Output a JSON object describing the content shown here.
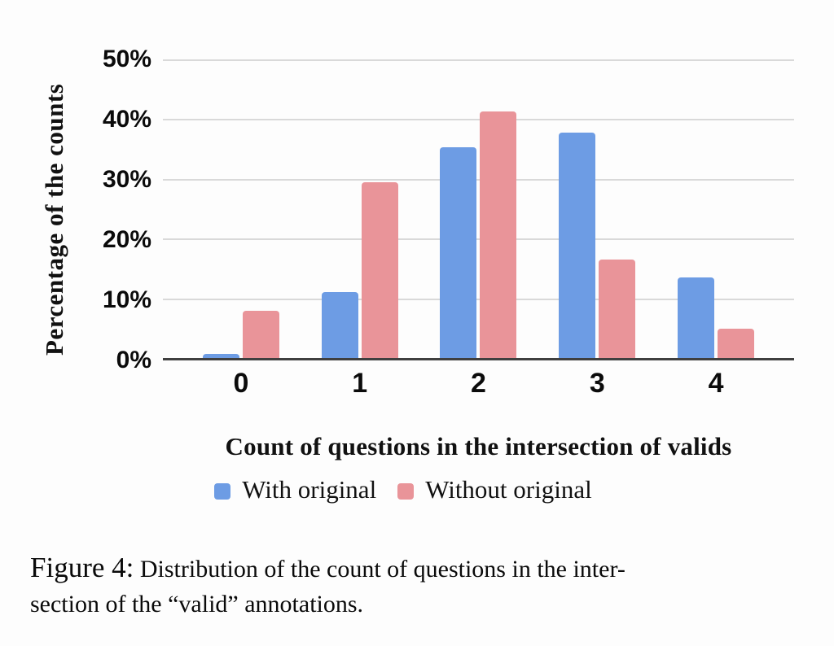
{
  "chart_data": {
    "type": "bar",
    "categories": [
      "0",
      "1",
      "2",
      "3",
      "4"
    ],
    "series": [
      {
        "name": "With original",
        "color": "#6d9ce4",
        "values": [
          0.7,
          11.0,
          35.0,
          37.4,
          13.4
        ]
      },
      {
        "name": "Without original",
        "color": "#e99499",
        "values": [
          7.8,
          29.2,
          40.9,
          16.4,
          4.9
        ]
      }
    ],
    "title": "",
    "xlabel": "Count of questions in the intersection of valids",
    "ylabel": "Percentage of the counts",
    "ylim": [
      0,
      50
    ],
    "yticks": [
      "50%",
      "40%",
      "30%",
      "20%",
      "10%",
      "0%"
    ],
    "ytick_values": [
      50,
      40,
      30,
      20,
      10,
      0
    ],
    "grid": true,
    "legend_position": "bottom",
    "gridline_color": "#d9d9d9",
    "axis_color": "#3f3f3f"
  },
  "caption": {
    "label": "Figure 4:",
    "line1": "Distribution of the count of questions in the inter-",
    "line2": "section of the “valid” annotations."
  }
}
